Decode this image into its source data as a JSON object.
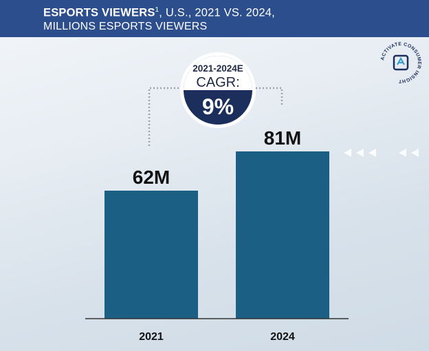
{
  "header": {
    "title_bold": "ESPORTS VIEWERS",
    "title_sup": "1",
    "title_rest": ", U.S., 2021 VS. 2024,",
    "subtitle": "MILLIONS ESPORTS VIEWERS"
  },
  "cagr": {
    "period": "2021-2024E",
    "label": "CAGR:",
    "value": "9%"
  },
  "logo": {
    "text": "ACTIVATE CONSUMER INSIGHT",
    "icon": "activate-logo-icon"
  },
  "colors": {
    "header": "#2d4e8c",
    "bar": "#1b5f84",
    "badge": "#1c2f5c"
  },
  "chart_data": {
    "type": "bar",
    "title": "ESPORTS VIEWERS1, U.S., 2021 VS. 2024, MILLIONS ESPORTS VIEWERS",
    "categories": [
      "2021",
      "2024"
    ],
    "values": [
      62,
      81
    ],
    "data_labels": [
      "62M",
      "81M"
    ],
    "xlabel": "",
    "ylabel": "",
    "ylim": [
      0,
      100
    ],
    "grid": false
  }
}
